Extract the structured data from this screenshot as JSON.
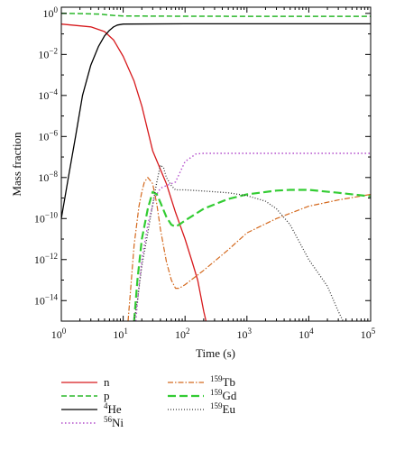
{
  "chart_data": {
    "type": "line",
    "xlabel": "Time (s)",
    "ylabel": "Mass fraction",
    "x_scale": "log",
    "y_scale": "log",
    "xlim": [
      1,
      100000
    ],
    "ylim": [
      1e-15,
      2
    ],
    "grid": false,
    "legend_placement": "bottom",
    "x_ticks": [
      {
        "value": 1,
        "base": "10",
        "exp": "0"
      },
      {
        "value": 10,
        "base": "10",
        "exp": "1"
      },
      {
        "value": 100,
        "base": "10",
        "exp": "2"
      },
      {
        "value": 1000,
        "base": "10",
        "exp": "3"
      },
      {
        "value": 10000,
        "base": "10",
        "exp": "4"
      },
      {
        "value": 100000,
        "base": "10",
        "exp": "5"
      }
    ],
    "y_ticks": [
      {
        "value": 1,
        "base": "10",
        "exp": "0"
      },
      {
        "value": 0.01,
        "base": "10",
        "exp": "−2"
      },
      {
        "value": 0.0001,
        "base": "10",
        "exp": "−4"
      },
      {
        "value": 1e-06,
        "base": "10",
        "exp": "−6"
      },
      {
        "value": 1e-08,
        "base": "10",
        "exp": "−8"
      },
      {
        "value": 1e-10,
        "base": "10",
        "exp": "−10"
      },
      {
        "value": 1e-12,
        "base": "10",
        "exp": "−12"
      },
      {
        "value": 1e-14,
        "base": "10",
        "exp": "−14"
      }
    ],
    "series": [
      {
        "name": "n",
        "sup": "",
        "base": "n",
        "color": "#d7191c",
        "dash": "solid",
        "x": [
          1,
          3,
          5,
          7,
          10,
          15,
          20,
          30,
          50,
          70,
          100,
          130,
          160,
          200,
          230
        ],
        "y": [
          0.3,
          0.22,
          0.13,
          0.05,
          0.008,
          0.0005,
          3e-05,
          2e-07,
          5e-09,
          2e-10,
          1e-11,
          8e-13,
          1e-13,
          3e-15,
          5e-16
        ]
      },
      {
        "name": "p",
        "sup": "",
        "base": "p",
        "color": "#2ab82a",
        "dash": "dashed",
        "x": [
          1,
          2,
          4,
          7,
          10,
          100,
          1000,
          10000,
          100000
        ],
        "y": [
          1,
          0.97,
          0.93,
          0.8,
          0.75,
          0.73,
          0.72,
          0.72,
          0.72
        ]
      },
      {
        "name": "4He",
        "sup": "4",
        "base": "He",
        "color": "#000000",
        "dash": "solid",
        "x": [
          1,
          1.3,
          1.7,
          2.2,
          3,
          4,
          5,
          6,
          7,
          8,
          10,
          100,
          1000,
          10000,
          100000
        ],
        "y": [
          1e-10,
          1e-08,
          1e-06,
          0.0001,
          0.003,
          0.025,
          0.08,
          0.15,
          0.22,
          0.27,
          0.3,
          0.31,
          0.31,
          0.31,
          0.31
        ]
      },
      {
        "name": "56Ni",
        "sup": "56",
        "base": "Ni",
        "color": "#b34dcc",
        "dash": "dotted",
        "x": [
          16,
          18,
          20,
          25,
          32,
          40,
          50,
          60,
          70,
          100,
          150,
          200,
          500,
          1000,
          10000,
          100000
        ],
        "y": [
          1e-15,
          5e-14,
          1e-12,
          5e-11,
          1e-09,
          3e-09,
          4e-09,
          5e-09,
          6e-09,
          6e-08,
          1.4e-07,
          1.5e-07,
          1.5e-07,
          1.5e-07,
          1.5e-07,
          1.5e-07
        ]
      },
      {
        "name": "159Tb",
        "sup": "159",
        "base": "Tb",
        "color": "#d4691e",
        "dash": "dashdot",
        "x": [
          12,
          13,
          15,
          18,
          20,
          22,
          25,
          30,
          35,
          40,
          50,
          60,
          70,
          80,
          100,
          200,
          500,
          1000,
          3000,
          10000,
          30000,
          100000
        ],
        "y": [
          1e-15,
          2e-14,
          5e-12,
          4e-10,
          2e-09,
          6e-09,
          1e-08,
          5e-09,
          5e-10,
          3e-11,
          8e-13,
          1e-13,
          4e-14,
          4e-14,
          6e-14,
          3e-13,
          3e-12,
          2e-11,
          1e-10,
          4e-10,
          8e-10,
          1.5e-09
        ]
      },
      {
        "name": "159Gd",
        "sup": "159",
        "base": "Gd",
        "color": "#33cc33",
        "dash": "longdash",
        "x": [
          15,
          17,
          20,
          25,
          30,
          35,
          40,
          50,
          60,
          70,
          80,
          100,
          200,
          500,
          1000,
          3000,
          5000,
          10000,
          30000,
          100000
        ],
        "y": [
          1e-15,
          1e-13,
          1e-11,
          3e-10,
          2e-09,
          1.5e-09,
          6e-10,
          1.2e-10,
          5e-11,
          4e-11,
          5e-11,
          8e-11,
          3e-10,
          9e-10,
          1.5e-09,
          2.3e-09,
          2.5e-09,
          2.5e-09,
          1.8e-09,
          1.2e-09
        ]
      },
      {
        "name": "159Eu",
        "sup": "159",
        "base": "Eu",
        "color": "#333333",
        "dash": "densedot",
        "x": [
          15,
          17,
          20,
          25,
          30,
          35,
          40,
          45,
          50,
          60,
          70,
          100,
          200,
          500,
          1000,
          2000,
          3000,
          5000,
          10000,
          20000,
          30000,
          40000
        ],
        "y": [
          1e-15,
          1e-14,
          5e-13,
          2e-11,
          5e-10,
          6e-09,
          4e-08,
          3e-08,
          1e-08,
          4e-09,
          2.5e-09,
          2.5e-09,
          2.2e-09,
          1.8e-09,
          1.3e-09,
          7e-10,
          3e-10,
          5e-11,
          1e-12,
          5e-14,
          3e-15,
          5e-16
        ]
      }
    ],
    "legend_columns": [
      [
        "n",
        "p",
        "4He",
        "56Ni"
      ],
      [
        "159Tb",
        "159Gd",
        "159Eu"
      ]
    ]
  }
}
